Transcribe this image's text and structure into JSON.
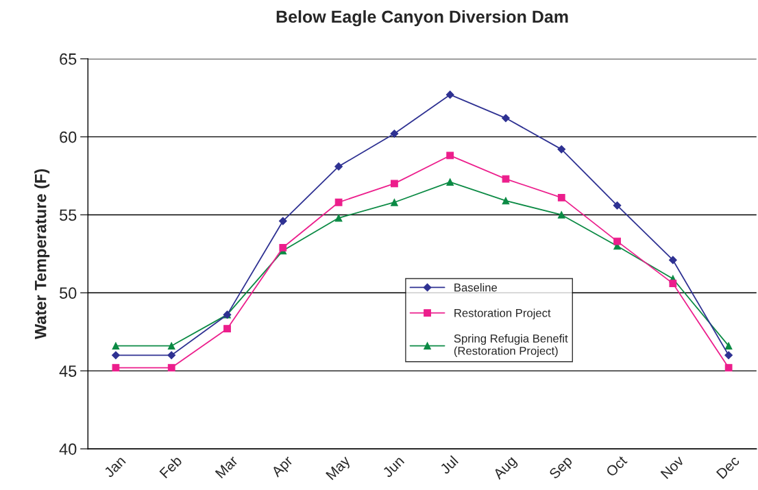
{
  "chart_data": {
    "type": "line",
    "title": "Below Eagle Canyon Diversion Dam",
    "ylabel": "Water Temperature (F)",
    "categories": [
      "Jan",
      "Feb",
      "Mar",
      "Apr",
      "May",
      "Jun",
      "Jul",
      "Aug",
      "Sep",
      "Oct",
      "Nov",
      "Dec"
    ],
    "series": [
      {
        "name": "Baseline",
        "color": "#2e3192",
        "marker": "diamond",
        "values": [
          46.0,
          46.0,
          48.6,
          54.6,
          58.1,
          60.2,
          62.7,
          61.2,
          59.2,
          55.6,
          52.1,
          46.0
        ]
      },
      {
        "name": "Restoration Project",
        "color": "#ec1e8c",
        "marker": "square",
        "values": [
          45.2,
          45.2,
          47.7,
          52.9,
          55.8,
          57.0,
          58.8,
          57.3,
          56.1,
          53.3,
          50.6,
          45.2
        ]
      },
      {
        "name": "Spring Refugia Benefit\n(Restoration Project)",
        "color": "#0b8a44",
        "marker": "triangle",
        "values": [
          46.6,
          46.6,
          48.6,
          52.7,
          54.8,
          55.8,
          57.1,
          55.9,
          55.0,
          53.0,
          50.9,
          46.6
        ]
      }
    ],
    "ylim": [
      40,
      65
    ],
    "yticks": [
      40,
      45,
      50,
      55,
      60,
      65
    ],
    "grid": "y",
    "legend": "center",
    "line_style": "solid"
  }
}
